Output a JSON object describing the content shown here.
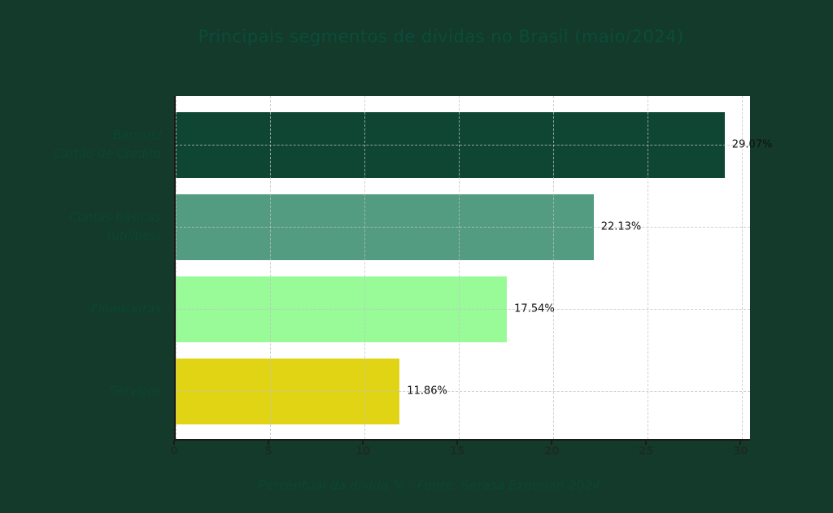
{
  "page": {
    "background_color": "#133a2b",
    "title_color": "#0c4c3a",
    "axis_text_color": "#0b4635",
    "tick_label_color": "#1c2b24",
    "value_label_color": "#111111",
    "plot_background": "#ffffff"
  },
  "chart_data": {
    "type": "bar",
    "orientation": "horizontal",
    "title": "Principais segmentos de dívidas no Brasil (maio/2024)",
    "xlabel": "Percentual da dívida % - Fonte: Serasa Experian 2024",
    "ylabel": "",
    "categories": [
      "Bancos/ Cartão de Crédito",
      "Contas básicas (utilities)",
      "Financeiras",
      "Serviços"
    ],
    "category_lines": [
      [
        "Bancos/",
        "Cartão de Crédito"
      ],
      [
        "Contas básicas",
        "(utilities)"
      ],
      [
        "Financeiras"
      ],
      [
        "Serviços"
      ]
    ],
    "values": [
      29.07,
      22.13,
      17.54,
      11.86
    ],
    "value_labels": [
      "29.07%",
      "22.13%",
      "17.54%",
      "11.86%"
    ],
    "bar_colors": [
      "#0e4533",
      "#539c82",
      "#98fb98",
      "#e0d414"
    ],
    "xlim": [
      0,
      30.5
    ],
    "xticks": [
      0,
      5,
      10,
      15,
      20,
      25,
      30
    ],
    "grid": "dashed",
    "legend": "none"
  }
}
